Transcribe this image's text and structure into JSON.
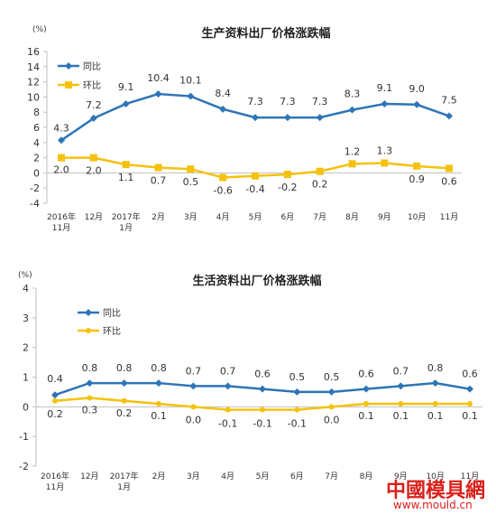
{
  "chart_data": [
    {
      "type": "line",
      "title": "生产资料出厂价格涨跌幅",
      "unit": "(%)",
      "categories": [
        "2016年\n11月",
        "12月",
        "2017年\n1月",
        "2月",
        "3月",
        "4月",
        "5月",
        "6月",
        "7月",
        "8月",
        "9月",
        "10月",
        "11月"
      ],
      "series": [
        {
          "name": "同比",
          "color": "#2e75b6",
          "marker": "diamond",
          "values": [
            4.3,
            7.2,
            9.1,
            10.4,
            10.1,
            8.4,
            7.3,
            7.3,
            7.3,
            8.3,
            9.1,
            9.0,
            7.5
          ]
        },
        {
          "name": "环比",
          "color": "#f4c20d",
          "marker": "square",
          "values": [
            2.0,
            2.0,
            1.1,
            0.7,
            0.5,
            -0.6,
            -0.4,
            -0.2,
            0.2,
            1.2,
            1.3,
            0.9,
            0.6
          ]
        }
      ],
      "ylim": [
        -4,
        16
      ],
      "yticks": [
        -4,
        -2,
        0,
        2,
        4,
        6,
        8,
        10,
        12,
        14,
        16
      ],
      "ytick_labels": [
        "-4",
        "-2",
        "0",
        "2",
        "4",
        "6",
        "8",
        "10",
        "12",
        "14",
        "16"
      ],
      "labels": [
        [
          "4.3",
          "7.2",
          "9.1",
          "10.4",
          "10.1",
          "8.4",
          "7.3",
          "7.3",
          "7.3",
          "8.3",
          "9.1",
          "9.0",
          "7.5"
        ],
        [
          "2.0",
          "2.0",
          "1.1",
          "0.7",
          "0.5",
          "-0.6",
          "-0.4",
          "-0.2",
          "0.2",
          "1.2",
          "1.3",
          "0.9",
          "0.6"
        ]
      ],
      "legend": "top-left",
      "grid": false
    },
    {
      "type": "line",
      "title": "生活资料出厂价格涨跌幅",
      "unit": "(%)",
      "categories": [
        "2016年\n11月",
        "12月",
        "2017年\n1月",
        "2月",
        "3月",
        "4月",
        "5月",
        "6月",
        "7月",
        "8月",
        "9月",
        "10月",
        "11月"
      ],
      "series": [
        {
          "name": "同比",
          "color": "#2e75b6",
          "marker": "diamond",
          "values": [
            0.4,
            0.8,
            0.8,
            0.8,
            0.7,
            0.7,
            0.6,
            0.5,
            0.5,
            0.6,
            0.7,
            0.8,
            0.6
          ]
        },
        {
          "name": "环比",
          "color": "#f4c20d",
          "marker": "dot",
          "values": [
            0.2,
            0.3,
            0.2,
            0.1,
            0.0,
            -0.1,
            -0.1,
            -0.1,
            0.0,
            0.1,
            0.1,
            0.1,
            0.1
          ]
        }
      ],
      "ylim": [
        -2,
        4
      ],
      "yticks": [
        -2,
        -1,
        0,
        1,
        2,
        3,
        4
      ],
      "ytick_labels": [
        "-2",
        "-1",
        "0",
        "1",
        "2",
        "3",
        "4"
      ],
      "labels": [
        [
          "0.4",
          "0.8",
          "0.8",
          "0.8",
          "0.7",
          "0.7",
          "0.6",
          "0.5",
          "0.5",
          "0.6",
          "0.7",
          "0.8",
          "0.6"
        ],
        [
          "0.2",
          "0.3",
          "0.2",
          "0.1",
          "0.0",
          "-0.1",
          "-0.1",
          "-0.1",
          "0.0",
          "0.1",
          "0.1",
          "0.1",
          "0.1"
        ]
      ],
      "legend": "top-left",
      "grid": false
    }
  ],
  "watermark": {
    "brand": "中國模具網",
    "url": "www.mould.cn"
  }
}
